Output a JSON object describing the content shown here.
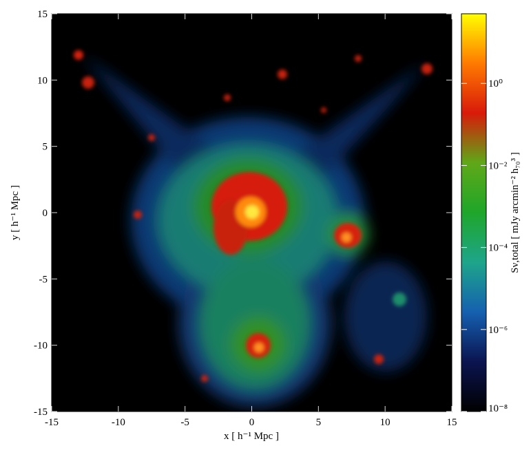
{
  "chart_data": {
    "type": "image",
    "xlabel": "x [ h⁻¹ Mpc ]",
    "ylabel": "y [ h⁻¹ Mpc ]",
    "xlim": [
      -15,
      15
    ],
    "ylim": [
      -15,
      15
    ],
    "xticks": [
      -15,
      -10,
      -5,
      0,
      5,
      10,
      15
    ],
    "yticks": [
      -15,
      -10,
      -5,
      0,
      5,
      10,
      15
    ],
    "colorbar": {
      "label": "Sν,total [ mJy arcmin⁻² h₇₀³ ]",
      "scale": "log",
      "lim": [
        1e-08,
        50
      ],
      "ticks": [
        {
          "value": 1e-08,
          "label": "10⁻⁸"
        },
        {
          "value": 1e-06,
          "label": "10⁻⁶"
        },
        {
          "value": 0.0001,
          "label": "10⁻⁴"
        },
        {
          "value": 0.01,
          "label": "10⁻²"
        },
        {
          "value": 1,
          "label": "10⁰"
        }
      ],
      "colormap": [
        "#000000",
        "#0b1450",
        "#1560b0",
        "#1ea58a",
        "#1fa62a",
        "#5fa818",
        "#d81a0a",
        "#ff7a00",
        "#ffff00"
      ]
    }
  }
}
